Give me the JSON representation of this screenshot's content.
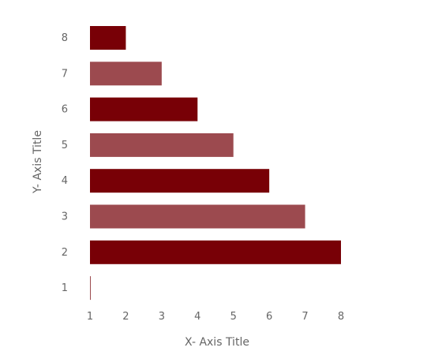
{
  "chart_data": {
    "type": "bar",
    "orientation": "horizontal",
    "categories": [
      "1",
      "2",
      "3",
      "4",
      "5",
      "6",
      "7",
      "8"
    ],
    "values": [
      1,
      8,
      7,
      6,
      5,
      4,
      3,
      2
    ],
    "xlabel": "X- Axis Title",
    "ylabel": "Y- Axis Title",
    "xlim": [
      1,
      8
    ],
    "x_ticks": [
      "1",
      "2",
      "3",
      "4",
      "5",
      "6",
      "7",
      "8"
    ],
    "grid": false,
    "colors": {
      "dark": "#780006",
      "light": "#9c4a4f",
      "text": "#666666"
    }
  }
}
